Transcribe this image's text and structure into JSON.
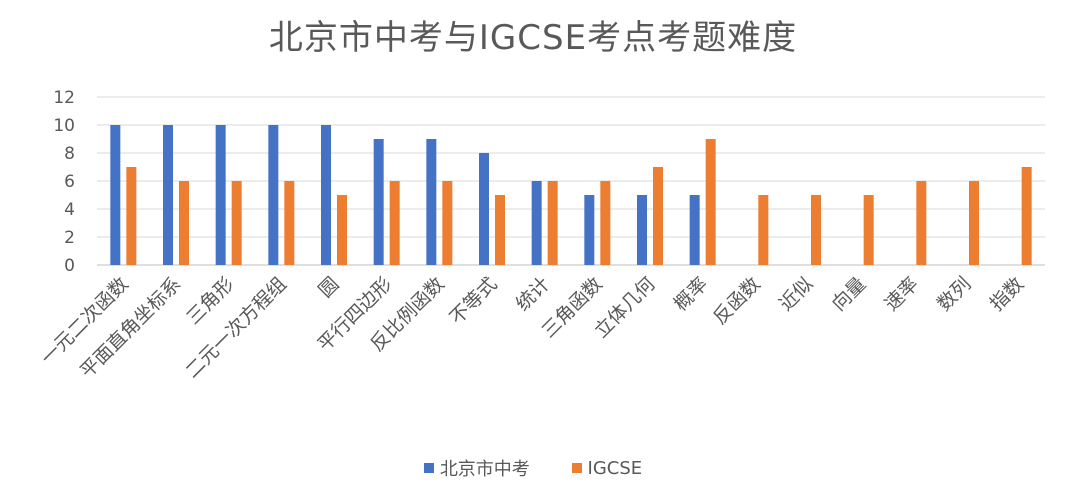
{
  "chart_data": {
    "type": "bar",
    "title": "北京市中考与IGCSE考点考题难度",
    "categories": [
      "一元二次函数",
      "平面直角坐标系",
      "三角形",
      "二元一次方程组",
      "圆",
      "平行四边形",
      "反比例函数",
      "不等式",
      "统计",
      "三角函数",
      "立体几何",
      "概率",
      "反函数",
      "近似",
      "向量",
      "速率",
      "数列",
      "指数"
    ],
    "series": [
      {
        "name": "北京市中考",
        "color": "#4472C4",
        "values": [
          10,
          10,
          10,
          10,
          10,
          9,
          9,
          8,
          6,
          5,
          5,
          5,
          null,
          null,
          null,
          null,
          null,
          null
        ]
      },
      {
        "name": "IGCSE",
        "color": "#ED7D31",
        "values": [
          7,
          6,
          6,
          6,
          5,
          6,
          6,
          5,
          6,
          6,
          7,
          9,
          5,
          5,
          5,
          6,
          6,
          7
        ]
      }
    ],
    "ylim": [
      0,
      12
    ],
    "yticks": [
      0,
      2,
      4,
      6,
      8,
      10,
      12
    ],
    "grid": true,
    "legend": "bottom"
  }
}
